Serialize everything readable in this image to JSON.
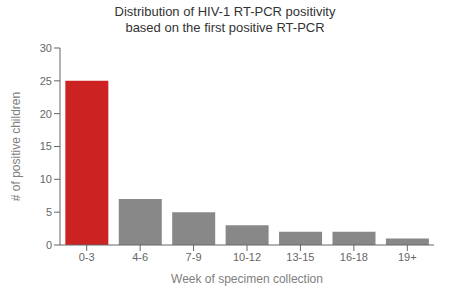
{
  "chart_data": {
    "type": "bar",
    "title": "Distribution of HIV-1 RT-PCR positivity\nbased on the first positive RT-PCR",
    "x_label": "Week of specimen collection",
    "y_label": "# of positive children",
    "categories": [
      "0-3",
      "4-6",
      "7-9",
      "10-12",
      "13-15",
      "16-18",
      "19+"
    ],
    "values": [
      25,
      7,
      5,
      3,
      2,
      2,
      1
    ],
    "colors": [
      "#cc2222",
      "#888888",
      "#888888",
      "#888888",
      "#888888",
      "#888888",
      "#888888"
    ],
    "ylim": [
      0,
      30
    ],
    "yticks": [
      0,
      5,
      10,
      15,
      20,
      25,
      30
    ],
    "grid": false
  }
}
